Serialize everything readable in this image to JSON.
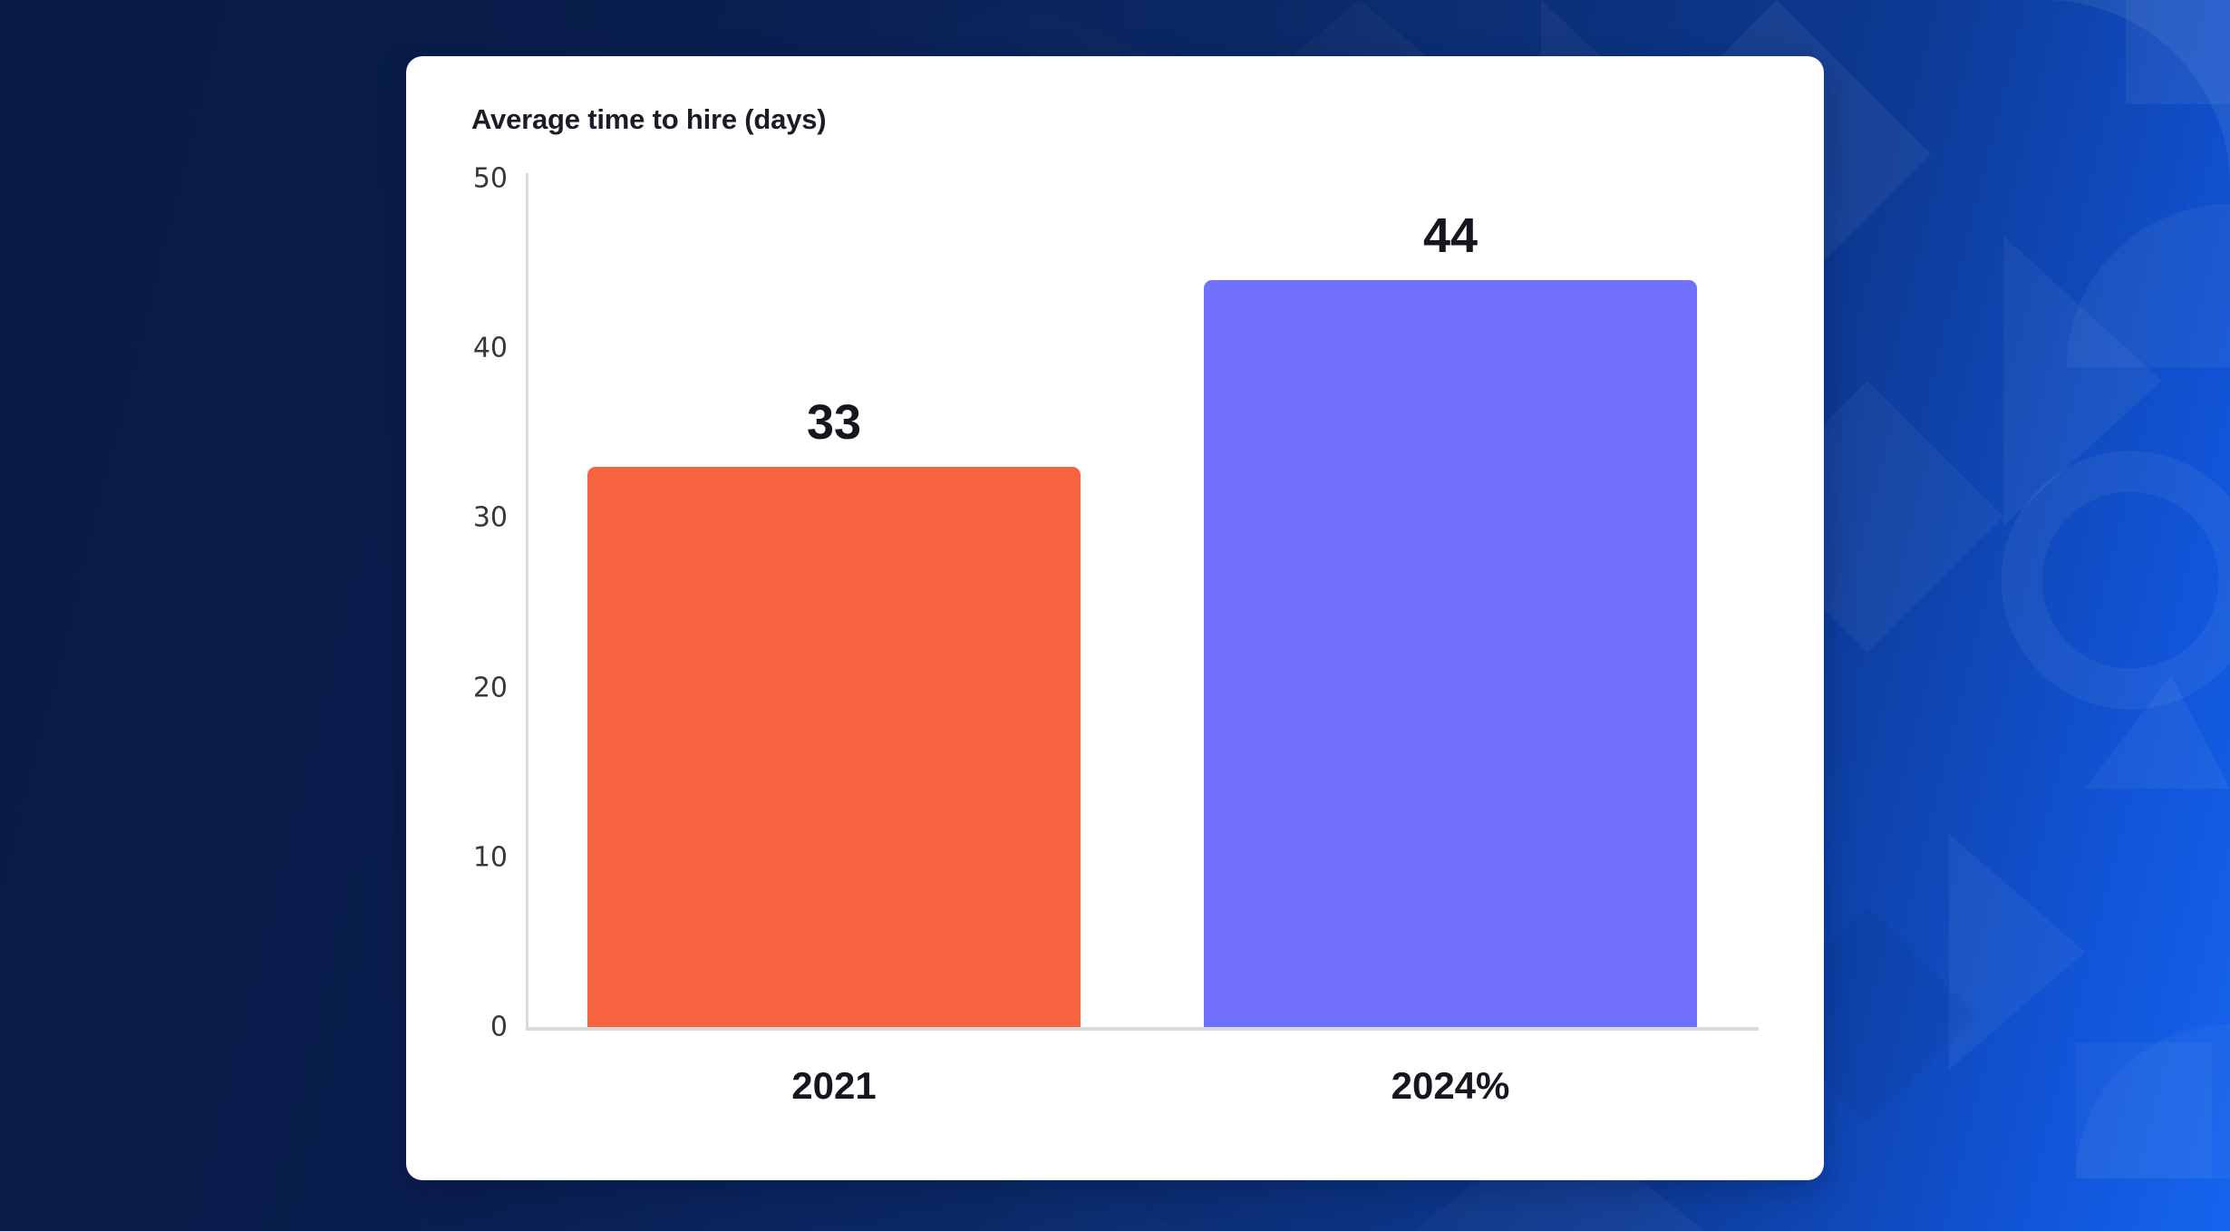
{
  "chart_data": {
    "type": "bar",
    "title": "Average time to hire (days)",
    "categories": [
      "2021",
      "2024%"
    ],
    "values": [
      33,
      44
    ],
    "value_labels": [
      "33",
      "44"
    ],
    "xlabel": "",
    "ylabel": "",
    "ylim": [
      0,
      50
    ],
    "yticks": [
      0,
      10,
      20,
      30,
      40,
      50
    ],
    "grid": false,
    "legend": false,
    "bar_colors": [
      "#F7633E",
      "#7070FA"
    ],
    "bar_width_frac": 0.8
  },
  "colors": {
    "background_navy": "#091B45",
    "background_bright_blue": "#1565EE",
    "background_mid_blue": "#0D3A94",
    "card_background": "#FFFFFF",
    "axis_line": "#D9DADB",
    "title_text": "#1A1D26",
    "tick_text": "#35393E",
    "label_text": "#14171D"
  }
}
